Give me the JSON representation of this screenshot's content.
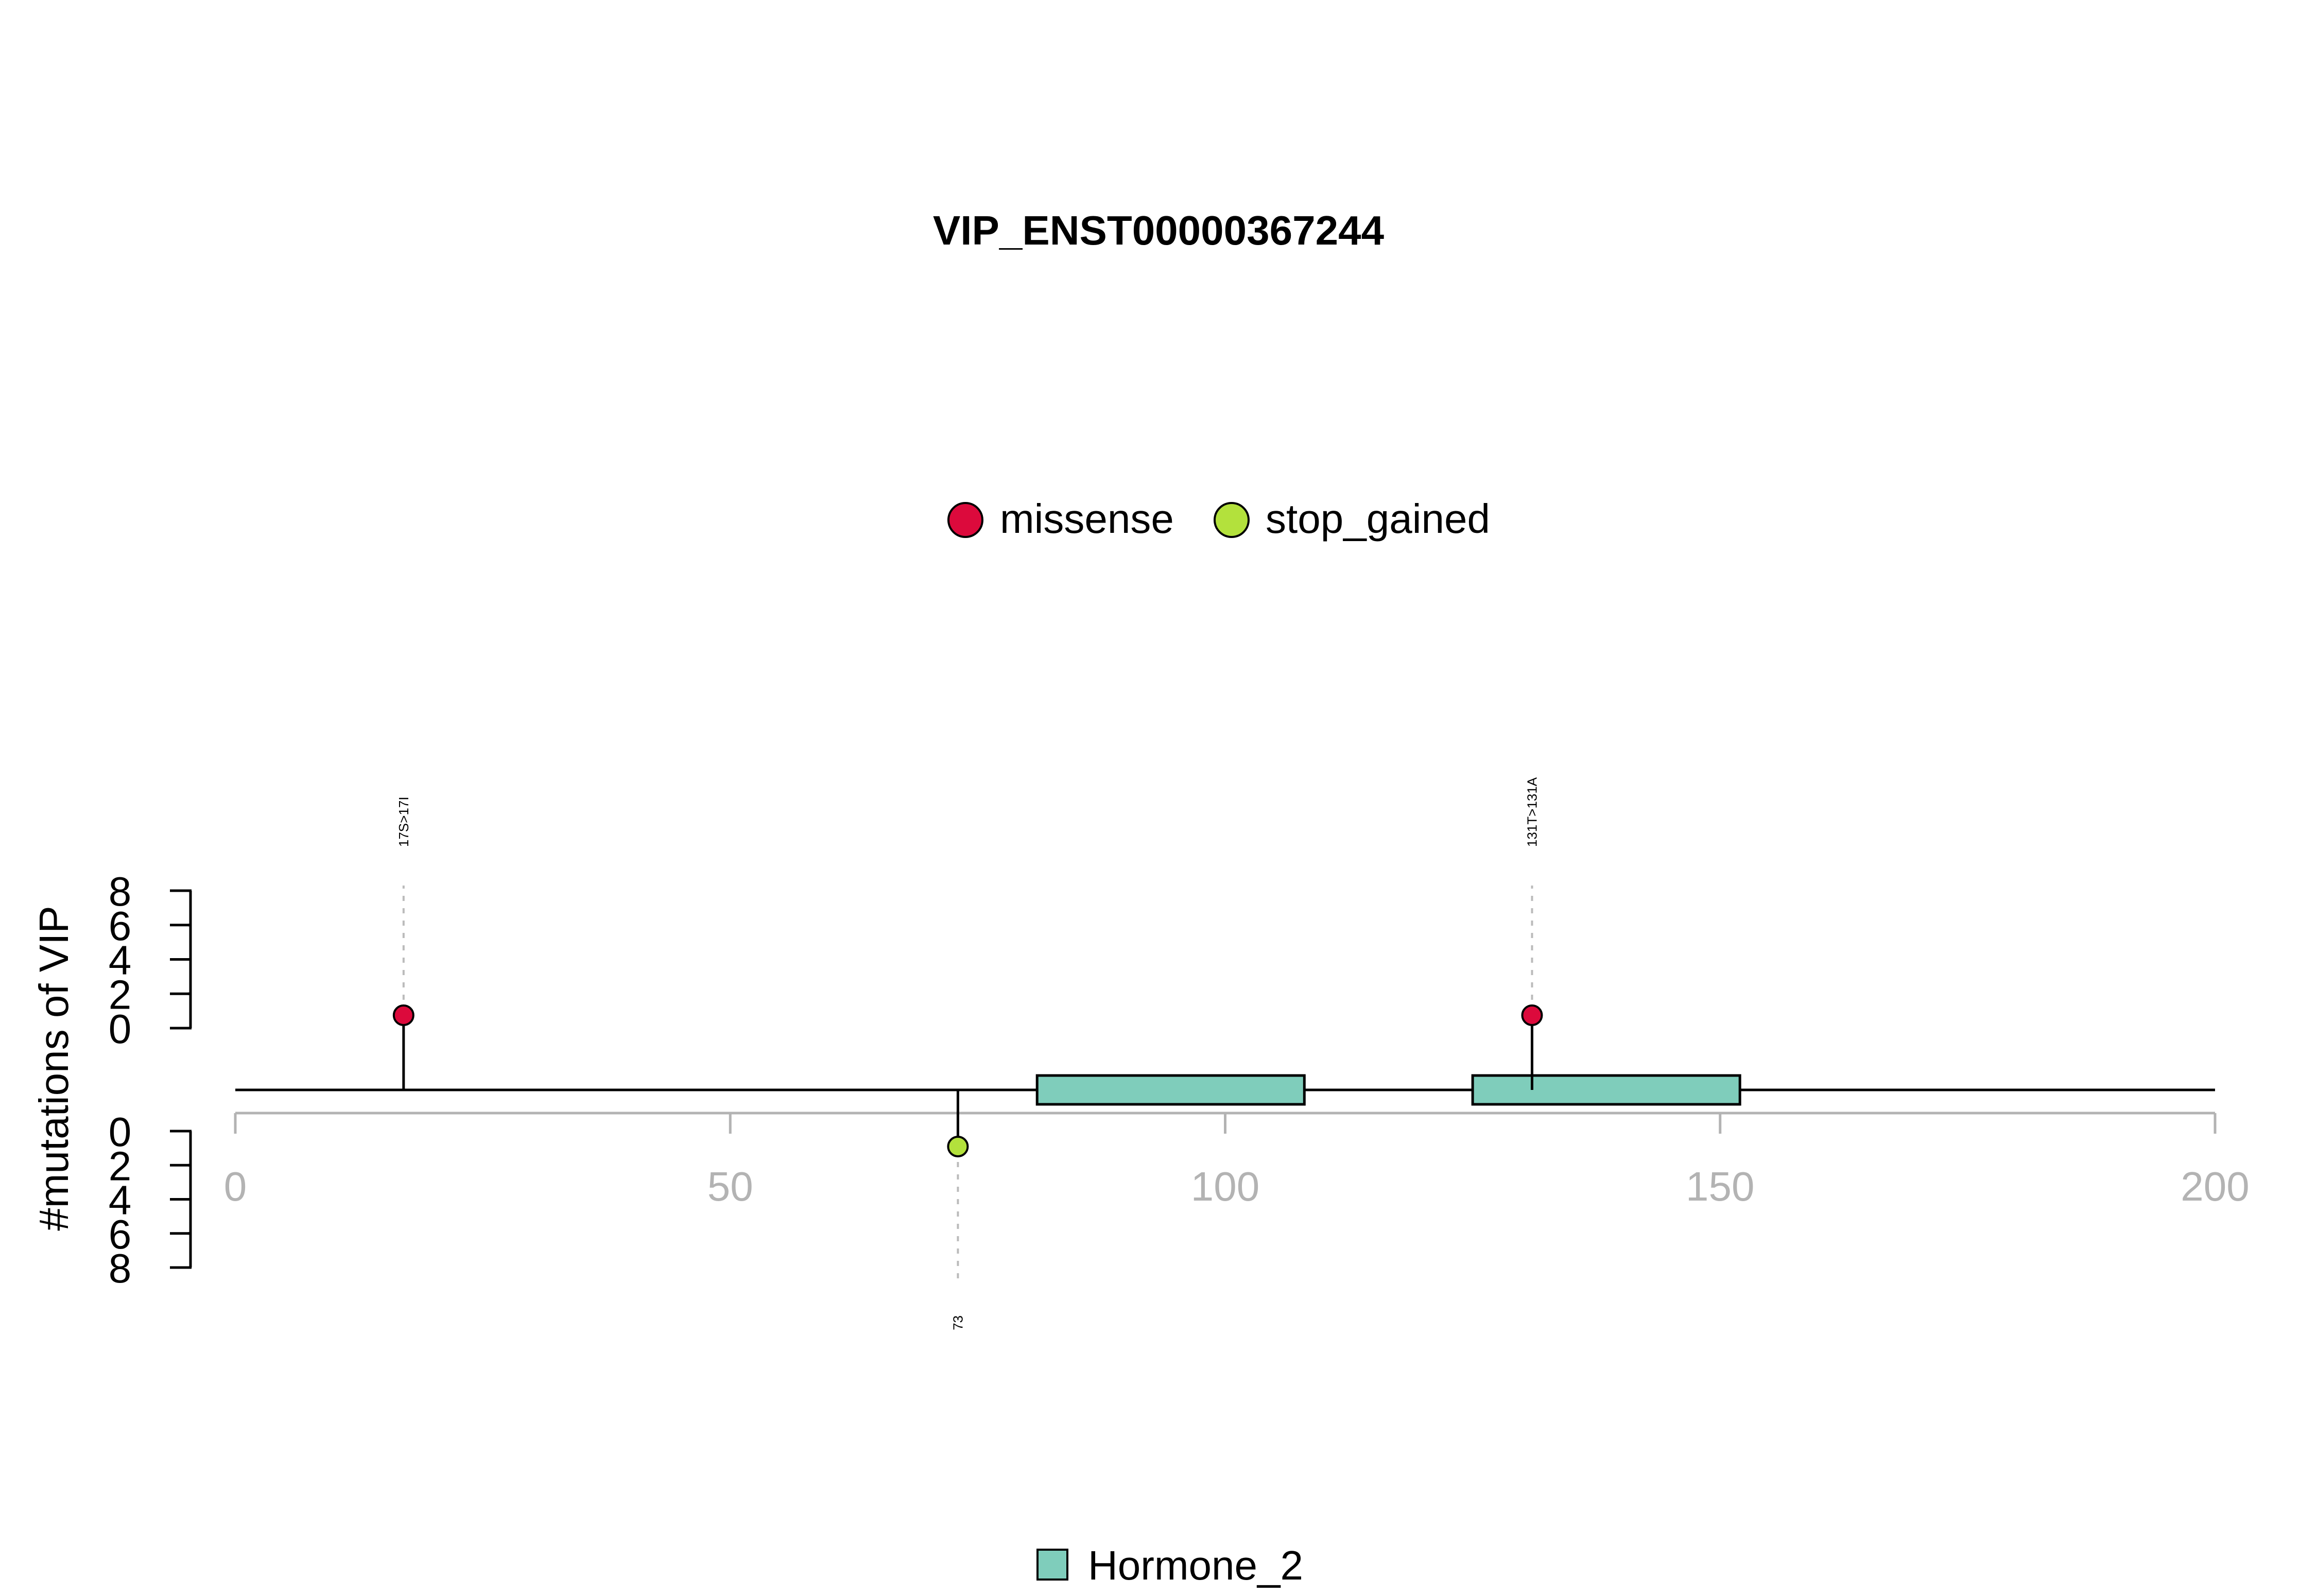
{
  "chart_data": {
    "type": "lollipop",
    "title": "VIP_ENST00000367244",
    "ylabel": "#mutations of VIP",
    "xlim": [
      0,
      200
    ],
    "x_ticks": [
      0,
      50,
      100,
      150,
      200
    ],
    "x_tick_labels": [
      "0",
      "50",
      "100",
      "150",
      "200"
    ],
    "y_ticks": [
      0,
      2,
      4,
      6,
      8
    ],
    "y_tick_labels": [
      "0",
      "2",
      "4",
      "6",
      "8"
    ],
    "ylim_upper": [
      0,
      8
    ],
    "ylim_lower": [
      0,
      8
    ],
    "legend_top": {
      "placement": "top-center",
      "entries": [
        {
          "label": "missense",
          "color": "#dc0a3c"
        },
        {
          "label": "stop_gained",
          "color": "#b3e13c"
        }
      ]
    },
    "legend_bottom": {
      "placement": "bottom-center",
      "entries": [
        {
          "label": "Hormone_2",
          "color": "#7fcdbb"
        }
      ]
    },
    "mutations": [
      {
        "position": 17,
        "label": "17S>17I",
        "type": "missense",
        "count": 1,
        "side": "upper"
      },
      {
        "position": 131,
        "label": "131T>131A",
        "type": "missense",
        "count": 1,
        "side": "upper"
      },
      {
        "position": 73,
        "label": "73",
        "type": "stop_gained",
        "count": 1,
        "side": "lower"
      }
    ],
    "domains": [
      {
        "name": "Hormone_2",
        "start": 81,
        "end": 108
      },
      {
        "name": "Hormone_2",
        "start": 125,
        "end": 152
      }
    ]
  }
}
